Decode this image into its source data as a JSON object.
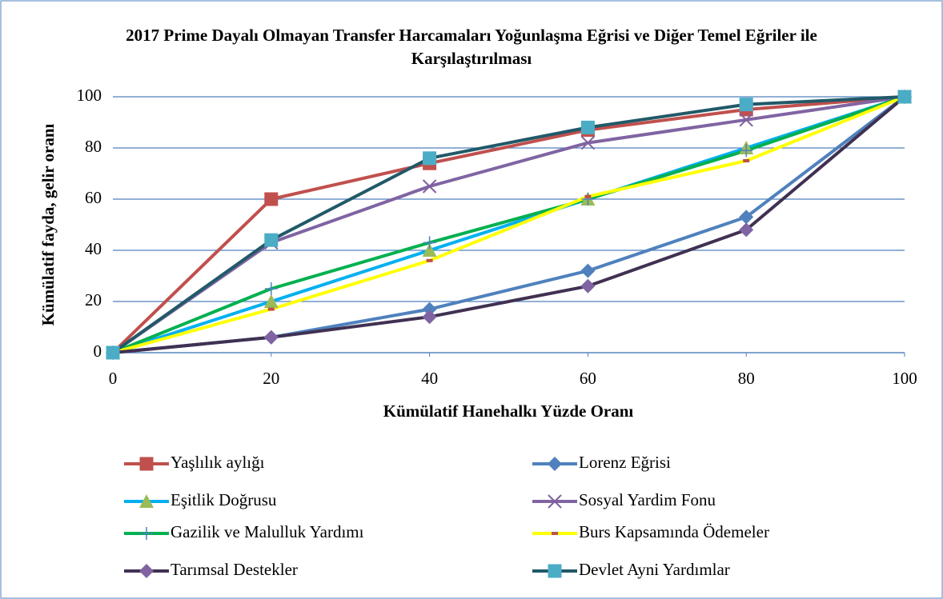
{
  "chart_data": {
    "type": "line",
    "title": "2017 Prime Dayalı Olmayan Transfer Harcamaları Yoğunlaşma Eğrisi ve Diğer Temel Eğriler ile Karşılaştırılması",
    "x_label": "Kümülatif Hanehalkı Yüzde Oranı",
    "y_label": "Kümülatif fayda, gelir oranı",
    "x": [
      0,
      20,
      40,
      60,
      80,
      100
    ],
    "xlim": [
      0,
      100
    ],
    "xticks": [
      0,
      20,
      40,
      60,
      80,
      100
    ],
    "ylim": [
      0,
      100
    ],
    "yticks": [
      0,
      20,
      40,
      60,
      80,
      100
    ],
    "grid": true,
    "series": [
      {
        "name": "Yaşlılık aylığı",
        "color": "#c0504d",
        "marker": "square",
        "marker_color": "#c0504d",
        "values": [
          0,
          60,
          74,
          87,
          95,
          100
        ]
      },
      {
        "name": "Lorenz Eğrisi",
        "color": "#4f81bd",
        "marker": "diamond",
        "marker_color": "#4f81bd",
        "values": [
          0,
          6,
          17,
          32,
          53,
          100
        ]
      },
      {
        "name": "Eşitlik Doğrusu",
        "color": "#00b0f0",
        "marker": "triangle",
        "marker_color": "#9bbb59",
        "values": [
          0,
          20,
          40,
          60,
          80,
          100
        ]
      },
      {
        "name": "Sosyal Yardim Fonu",
        "color": "#8064a2",
        "marker": "x",
        "marker_color": "#7f5f9f",
        "values": [
          0,
          43,
          65,
          82,
          91,
          100
        ]
      },
      {
        "name": "Gazilik ve Malulluk Yardımı",
        "color": "#00b050",
        "marker": "plus",
        "marker_color": "#4f81bd",
        "values": [
          0,
          25,
          43,
          60,
          79,
          100
        ]
      },
      {
        "name": "Burs Kapsamında Ödemeler",
        "color": "#ffff00",
        "marker": "dash",
        "marker_color": "#c0504d",
        "values": [
          0,
          17,
          36,
          61,
          75,
          100
        ]
      },
      {
        "name": "Tarımsal Destekler",
        "color": "#403152",
        "marker": "diamond",
        "marker_color": "#8064a2",
        "values": [
          0,
          6,
          14,
          26,
          48,
          100
        ]
      },
      {
        "name": "Devlet Ayni Yardımlar",
        "color": "#215968",
        "marker": "square",
        "marker_color": "#4bacc6",
        "values": [
          0,
          44,
          76,
          88,
          97,
          100
        ]
      }
    ]
  }
}
